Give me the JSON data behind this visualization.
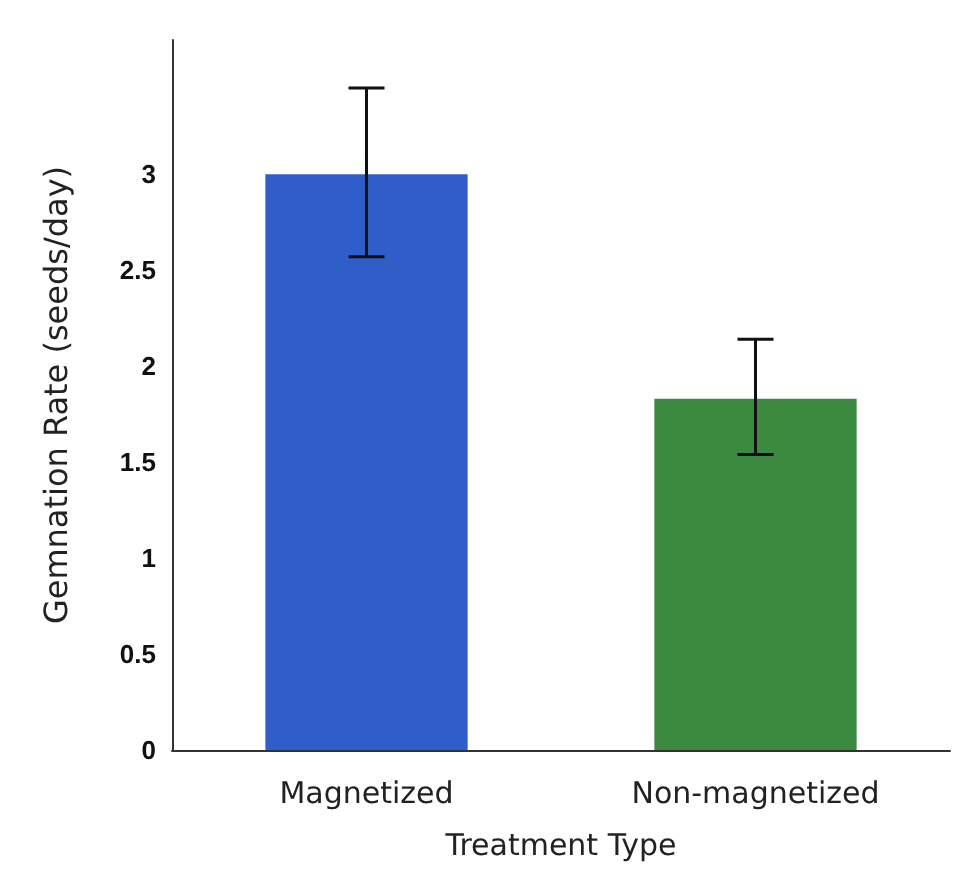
{
  "chart_data": {
    "type": "bar",
    "xlabel": "Treatment Type",
    "ylabel": "Gemnation Rate (seeds/day)",
    "categories": [
      "Magnetized",
      "Non-magnetized"
    ],
    "values": [
      3.0,
      1.83
    ],
    "colors": [
      "#2f5ec9",
      "#3b8a3f"
    ],
    "errors": [
      [
        2.57,
        3.45
      ],
      [
        1.54,
        2.14
      ]
    ],
    "ylim": [
      0,
      3.7
    ],
    "yticks": [
      0,
      0.5,
      1,
      1.5,
      2,
      2.5,
      3
    ],
    "grid": false
  }
}
